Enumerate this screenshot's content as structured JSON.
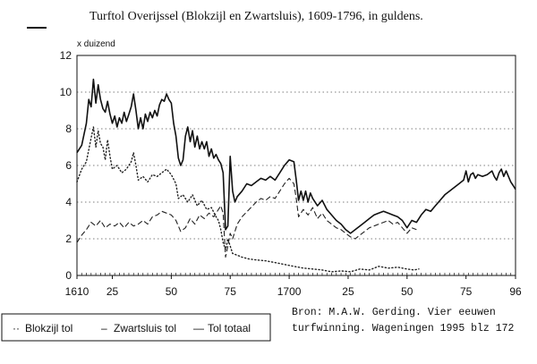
{
  "chart_data": {
    "type": "line",
    "title": "Turftol Overijssel (Blokzijl en Zwartsluis), 1609-1796, in guldens.",
    "ylabel": "x duizend",
    "xlabel": "",
    "xlim": [
      1610,
      1796
    ],
    "ylim": [
      0,
      12
    ],
    "y_ticks": [
      0,
      2,
      4,
      6,
      8,
      10,
      12
    ],
    "x_ticks": [
      {
        "value": 1610,
        "label": "1610"
      },
      {
        "value": 1625,
        "label": "25"
      },
      {
        "value": 1650,
        "label": "50"
      },
      {
        "value": 1675,
        "label": "75"
      },
      {
        "value": 1700,
        "label": "1700"
      },
      {
        "value": 1725,
        "label": "25"
      },
      {
        "value": 1750,
        "label": "50"
      },
      {
        "value": 1775,
        "label": "75"
      },
      {
        "value": 1796,
        "label": "96"
      }
    ],
    "grid": true,
    "legend_position": "bottom-left",
    "series": [
      {
        "name": "Blokzijl tol",
        "style": "dotted",
        "points": [
          [
            1610,
            5.1
          ],
          [
            1612,
            5.8
          ],
          [
            1614,
            6.2
          ],
          [
            1616,
            7.5
          ],
          [
            1617,
            8.1
          ],
          [
            1618,
            7.0
          ],
          [
            1619,
            7.9
          ],
          [
            1620,
            7.2
          ],
          [
            1621,
            7.0
          ],
          [
            1622,
            6.3
          ],
          [
            1623,
            7.4
          ],
          [
            1624,
            6.5
          ],
          [
            1625,
            5.8
          ],
          [
            1627,
            6.0
          ],
          [
            1629,
            5.6
          ],
          [
            1631,
            5.8
          ],
          [
            1633,
            6.2
          ],
          [
            1634,
            6.7
          ],
          [
            1635,
            6.0
          ],
          [
            1636,
            5.2
          ],
          [
            1638,
            5.4
          ],
          [
            1640,
            5.1
          ],
          [
            1642,
            5.5
          ],
          [
            1644,
            5.4
          ],
          [
            1646,
            5.6
          ],
          [
            1648,
            5.8
          ],
          [
            1650,
            5.5
          ],
          [
            1652,
            5.0
          ],
          [
            1653,
            4.2
          ],
          [
            1655,
            4.4
          ],
          [
            1657,
            4.0
          ],
          [
            1659,
            4.4
          ],
          [
            1661,
            3.8
          ],
          [
            1663,
            4.1
          ],
          [
            1665,
            3.6
          ],
          [
            1667,
            3.7
          ],
          [
            1669,
            3.2
          ],
          [
            1670,
            3.0
          ],
          [
            1671,
            2.5
          ],
          [
            1672,
            1.8
          ],
          [
            1673,
            1.4
          ],
          [
            1674,
            2.0
          ],
          [
            1675,
            1.6
          ],
          [
            1676,
            1.2
          ],
          [
            1678,
            1.1
          ],
          [
            1680,
            1.0
          ],
          [
            1683,
            0.9
          ],
          [
            1686,
            0.85
          ],
          [
            1690,
            0.8
          ],
          [
            1694,
            0.7
          ],
          [
            1698,
            0.6
          ],
          [
            1702,
            0.5
          ],
          [
            1706,
            0.4
          ],
          [
            1710,
            0.35
          ],
          [
            1714,
            0.3
          ],
          [
            1718,
            0.2
          ],
          [
            1722,
            0.25
          ],
          [
            1726,
            0.2
          ],
          [
            1730,
            0.35
          ],
          [
            1734,
            0.3
          ],
          [
            1738,
            0.5
          ],
          [
            1742,
            0.4
          ],
          [
            1746,
            0.45
          ],
          [
            1750,
            0.35
          ],
          [
            1753,
            0.3
          ],
          [
            1755,
            0.35
          ]
        ]
      },
      {
        "name": "Zwartsluis tol",
        "style": "dashed",
        "points": [
          [
            1610,
            1.8
          ],
          [
            1612,
            2.2
          ],
          [
            1614,
            2.5
          ],
          [
            1616,
            2.9
          ],
          [
            1618,
            2.7
          ],
          [
            1620,
            3.0
          ],
          [
            1622,
            2.6
          ],
          [
            1624,
            2.8
          ],
          [
            1626,
            2.7
          ],
          [
            1628,
            2.9
          ],
          [
            1630,
            2.6
          ],
          [
            1632,
            2.9
          ],
          [
            1634,
            2.7
          ],
          [
            1636,
            2.8
          ],
          [
            1638,
            3.0
          ],
          [
            1640,
            2.8
          ],
          [
            1642,
            3.2
          ],
          [
            1644,
            3.3
          ],
          [
            1646,
            3.5
          ],
          [
            1648,
            3.4
          ],
          [
            1650,
            3.3
          ],
          [
            1652,
            3.0
          ],
          [
            1654,
            2.4
          ],
          [
            1656,
            2.6
          ],
          [
            1658,
            3.1
          ],
          [
            1660,
            2.8
          ],
          [
            1662,
            3.3
          ],
          [
            1664,
            3.1
          ],
          [
            1666,
            3.4
          ],
          [
            1668,
            3.2
          ],
          [
            1670,
            3.6
          ],
          [
            1671,
            3.8
          ],
          [
            1672,
            3.4
          ],
          [
            1673,
            1.0
          ],
          [
            1674,
            1.6
          ],
          [
            1675,
            2.3
          ],
          [
            1676,
            2.0
          ],
          [
            1678,
            2.8
          ],
          [
            1680,
            3.2
          ],
          [
            1683,
            3.6
          ],
          [
            1686,
            4.0
          ],
          [
            1688,
            4.2
          ],
          [
            1690,
            4.1
          ],
          [
            1692,
            4.3
          ],
          [
            1694,
            4.2
          ],
          [
            1696,
            4.6
          ],
          [
            1698,
            5.0
          ],
          [
            1700,
            5.3
          ],
          [
            1702,
            5.0
          ],
          [
            1703,
            4.2
          ],
          [
            1704,
            3.2
          ],
          [
            1706,
            3.6
          ],
          [
            1708,
            3.3
          ],
          [
            1710,
            3.7
          ],
          [
            1712,
            3.1
          ],
          [
            1714,
            3.4
          ],
          [
            1716,
            3.0
          ],
          [
            1718,
            2.8
          ],
          [
            1720,
            2.6
          ],
          [
            1722,
            2.5
          ],
          [
            1724,
            2.3
          ],
          [
            1726,
            2.1
          ],
          [
            1728,
            2.0
          ],
          [
            1730,
            2.2
          ],
          [
            1732,
            2.4
          ],
          [
            1734,
            2.6
          ],
          [
            1736,
            2.7
          ],
          [
            1738,
            2.8
          ],
          [
            1740,
            2.9
          ],
          [
            1742,
            3.0
          ],
          [
            1744,
            2.8
          ],
          [
            1746,
            2.9
          ],
          [
            1748,
            2.6
          ],
          [
            1750,
            2.3
          ],
          [
            1752,
            2.6
          ],
          [
            1754,
            2.5
          ]
        ]
      },
      {
        "name": "Tol totaal",
        "style": "solid",
        "points": [
          [
            1610,
            6.7
          ],
          [
            1612,
            7.1
          ],
          [
            1614,
            8.3
          ],
          [
            1615,
            9.6
          ],
          [
            1616,
            9.2
          ],
          [
            1617,
            10.7
          ],
          [
            1618,
            9.4
          ],
          [
            1619,
            10.4
          ],
          [
            1620,
            9.6
          ],
          [
            1621,
            9.1
          ],
          [
            1622,
            8.9
          ],
          [
            1623,
            9.5
          ],
          [
            1624,
            8.8
          ],
          [
            1625,
            8.3
          ],
          [
            1626,
            8.7
          ],
          [
            1627,
            8.1
          ],
          [
            1628,
            8.6
          ],
          [
            1629,
            8.3
          ],
          [
            1630,
            8.9
          ],
          [
            1631,
            8.4
          ],
          [
            1632,
            8.8
          ],
          [
            1633,
            9.2
          ],
          [
            1634,
            9.9
          ],
          [
            1635,
            9.0
          ],
          [
            1636,
            8.0
          ],
          [
            1637,
            8.6
          ],
          [
            1638,
            8.0
          ],
          [
            1639,
            8.8
          ],
          [
            1640,
            8.4
          ],
          [
            1641,
            8.9
          ],
          [
            1642,
            8.6
          ],
          [
            1643,
            9.0
          ],
          [
            1644,
            8.7
          ],
          [
            1645,
            9.3
          ],
          [
            1646,
            9.6
          ],
          [
            1647,
            9.5
          ],
          [
            1648,
            9.9
          ],
          [
            1649,
            9.6
          ],
          [
            1650,
            9.4
          ],
          [
            1651,
            8.3
          ],
          [
            1652,
            7.6
          ],
          [
            1653,
            6.4
          ],
          [
            1654,
            6.0
          ],
          [
            1655,
            6.3
          ],
          [
            1656,
            7.6
          ],
          [
            1657,
            8.1
          ],
          [
            1658,
            7.3
          ],
          [
            1659,
            7.9
          ],
          [
            1660,
            7.0
          ],
          [
            1661,
            7.6
          ],
          [
            1662,
            6.9
          ],
          [
            1663,
            7.3
          ],
          [
            1664,
            6.9
          ],
          [
            1665,
            7.3
          ],
          [
            1666,
            6.5
          ],
          [
            1667,
            6.9
          ],
          [
            1668,
            6.4
          ],
          [
            1669,
            6.6
          ],
          [
            1670,
            6.3
          ],
          [
            1671,
            6.1
          ],
          [
            1672,
            5.6
          ],
          [
            1673,
            2.5
          ],
          [
            1674,
            2.7
          ],
          [
            1675,
            6.5
          ],
          [
            1676,
            4.6
          ],
          [
            1677,
            4.0
          ],
          [
            1678,
            4.3
          ],
          [
            1680,
            4.6
          ],
          [
            1682,
            5.0
          ],
          [
            1684,
            4.9
          ],
          [
            1686,
            5.1
          ],
          [
            1688,
            5.3
          ],
          [
            1690,
            5.2
          ],
          [
            1692,
            5.4
          ],
          [
            1694,
            5.2
          ],
          [
            1696,
            5.6
          ],
          [
            1698,
            6.0
          ],
          [
            1700,
            6.3
          ],
          [
            1702,
            6.2
          ],
          [
            1703,
            5.2
          ],
          [
            1704,
            4.1
          ],
          [
            1705,
            4.6
          ],
          [
            1706,
            4.1
          ],
          [
            1707,
            4.6
          ],
          [
            1708,
            4.0
          ],
          [
            1709,
            4.5
          ],
          [
            1710,
            4.2
          ],
          [
            1712,
            3.8
          ],
          [
            1714,
            4.1
          ],
          [
            1716,
            3.6
          ],
          [
            1718,
            3.3
          ],
          [
            1720,
            3.0
          ],
          [
            1722,
            2.8
          ],
          [
            1724,
            2.5
          ],
          [
            1726,
            2.3
          ],
          [
            1728,
            2.5
          ],
          [
            1730,
            2.7
          ],
          [
            1732,
            2.9
          ],
          [
            1734,
            3.1
          ],
          [
            1736,
            3.3
          ],
          [
            1738,
            3.4
          ],
          [
            1740,
            3.5
          ],
          [
            1742,
            3.4
          ],
          [
            1744,
            3.3
          ],
          [
            1746,
            3.2
          ],
          [
            1748,
            3.0
          ],
          [
            1750,
            2.6
          ],
          [
            1752,
            3.0
          ],
          [
            1754,
            2.9
          ],
          [
            1756,
            3.3
          ],
          [
            1758,
            3.6
          ],
          [
            1760,
            3.5
          ],
          [
            1762,
            3.8
          ],
          [
            1764,
            4.1
          ],
          [
            1766,
            4.4
          ],
          [
            1768,
            4.6
          ],
          [
            1770,
            4.8
          ],
          [
            1772,
            5.0
          ],
          [
            1774,
            5.2
          ],
          [
            1775,
            5.7
          ],
          [
            1776,
            5.1
          ],
          [
            1777,
            5.5
          ],
          [
            1778,
            5.6
          ],
          [
            1779,
            5.3
          ],
          [
            1780,
            5.5
          ],
          [
            1782,
            5.4
          ],
          [
            1784,
            5.5
          ],
          [
            1786,
            5.7
          ],
          [
            1787,
            5.4
          ],
          [
            1788,
            5.2
          ],
          [
            1789,
            5.6
          ],
          [
            1790,
            5.8
          ],
          [
            1791,
            5.4
          ],
          [
            1792,
            5.7
          ],
          [
            1793,
            5.4
          ],
          [
            1794,
            5.1
          ],
          [
            1795,
            4.9
          ],
          [
            1796,
            4.7
          ]
        ]
      }
    ]
  },
  "legend": {
    "blokzijl_marker": "··",
    "blokzijl_label": "Blokzijl tol",
    "zwartsluis_marker": "–",
    "zwartsluis_label": "Zwartsluis tol",
    "totaal_marker": "—",
    "totaal_label": "Tol totaal"
  },
  "source": {
    "line1": "Bron: M.A.W. Gerding. Vier eeuwen",
    "line2": "turfwinning. Wageningen 1995 blz 172"
  }
}
